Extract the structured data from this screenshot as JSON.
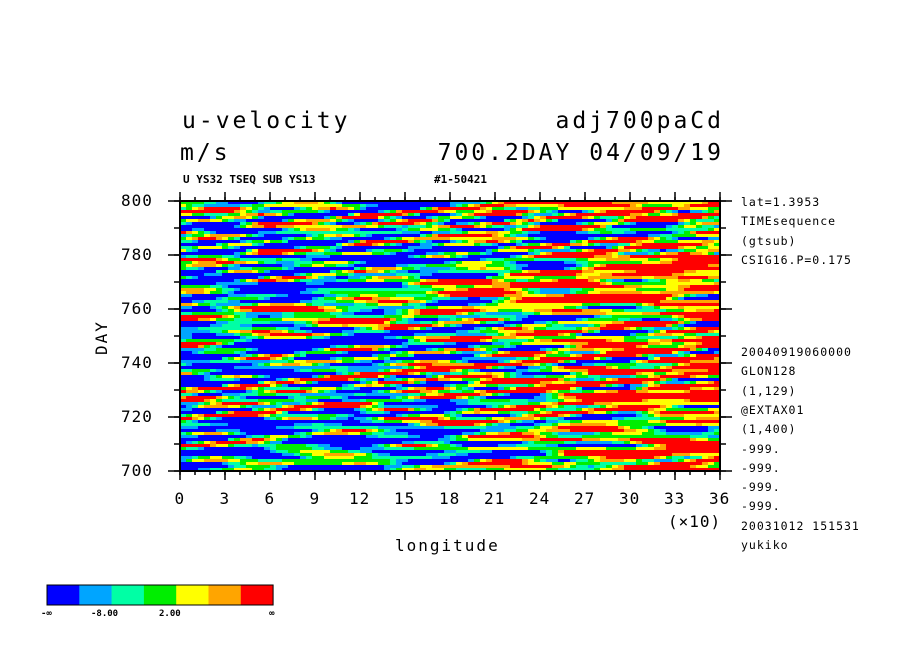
{
  "header": {
    "variable": "u-velocity",
    "units": "m/s",
    "experiment": "adj700paCd",
    "time_info": "700.2DAY 04/09/19",
    "subtitle_left": "U YS32 TSEQ SUB YS13",
    "subtitle_right": "#1-50421"
  },
  "side_info_top": [
    "lat=1.3953",
    "TIMEsequence",
    "(gtsub)",
    "CSIG16.P=0.175"
  ],
  "side_info_bottom": [
    "20040919060000",
    "GLON128",
    "(1,129)",
    "@EXTAX01",
    "(1,400)",
    "-999.",
    "-999.",
    "-999.",
    "-999.",
    "20031012 151531",
    "yukiko"
  ],
  "chart_data": {
    "type": "heatmap",
    "title": "u-velocity",
    "xlabel": "longitude",
    "ylabel": "DAY",
    "x_multiplier_label": "(×10)",
    "xlim": [
      0,
      36
    ],
    "ylim": [
      700,
      800
    ],
    "x_ticks": [
      "0",
      "3",
      "6",
      "9",
      "12",
      "15",
      "18",
      "21",
      "24",
      "27",
      "30",
      "33",
      "36"
    ],
    "y_ticks": [
      "700",
      "720",
      "740",
      "760",
      "780",
      "800"
    ],
    "grid": false,
    "colorbar": {
      "colors": [
        "#0000ff",
        "#00a5ff",
        "#00ffa5",
        "#00ee00",
        "#ffff00",
        "#ffa500",
        "#ff0000"
      ],
      "labels": [
        "-∞",
        "-8.00",
        "2.00",
        "∞"
      ]
    }
  }
}
